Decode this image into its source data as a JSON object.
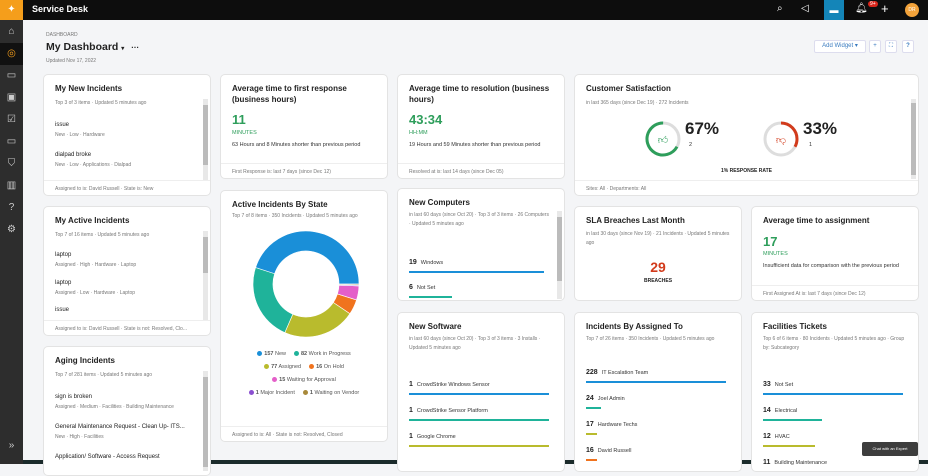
{
  "app": {
    "title": "Service Desk",
    "notif_badge": "9+",
    "avatar": "DR",
    "chat_expert": "Chat with an Expert"
  },
  "header": {
    "breadcrumb": "DASHBOARD",
    "title": "My Dashboard",
    "updated": "Updated Nov 17, 2022",
    "add_widget": "Add Widget"
  },
  "colors": {
    "blue": "#1a8fd8",
    "teal": "#1fb39a",
    "olive": "#b9bb2d",
    "orange": "#f0731e",
    "pink": "#e45fc9",
    "purple": "#8a4fd0",
    "brown": "#a8893a",
    "green": "#2e9e5b",
    "red": "#d23b1c"
  },
  "new_incidents": {
    "title": "My New Incidents",
    "sub": "Top 3 of 3 items · Updated 5 minutes ago",
    "items": [
      {
        "name": "issue",
        "meta": "New · Low · Hardware"
      },
      {
        "name": "dialpad broke",
        "meta": "New · Low · Applications · Dialpad"
      }
    ],
    "footer": "Assigned to is: David Russell · State is: New"
  },
  "first_response": {
    "title": "Average time to first response (business hours)",
    "value": "11",
    "unit": "MINUTES",
    "note": "63 Hours and 8 Minutes shorter than previous period",
    "footer": "First Response is: last 7 days (since Dec 12)"
  },
  "resolution": {
    "title": "Average time to resolution (business hours)",
    "value": "43:34",
    "unit": "HH:MM",
    "note": "19 Hours and 59 Minutes shorter than previous period",
    "footer": "Resolved at is: last 14 days (since Dec 05)"
  },
  "satisfaction": {
    "title": "Customer Satisfaction",
    "sub": "in last 365 days (since Dec 19) · 272 Incidents",
    "positive_pct": "67%",
    "positive_count": "2",
    "negative_pct": "33%",
    "negative_count": "1",
    "positive_fraction": 0.67,
    "negative_fraction": 0.33,
    "rate": "1% RESPONSE RATE",
    "footer": "Sites: All · Departments: All"
  },
  "active_incidents": {
    "title": "My Active Incidents",
    "sub": "Top 7 of 16 items · Updated 5 minutes ago",
    "items": [
      {
        "name": "laptop",
        "meta": "Assigned · High · Hardware · Laptop"
      },
      {
        "name": "laptop",
        "meta": "Assigned · Low · Hardware · Laptop"
      },
      {
        "name": "issue",
        "meta": ""
      }
    ],
    "footer": "Assigned to is: David Russell · State is not: Resolved, Clo..."
  },
  "by_state": {
    "title": "Active Incidents By State",
    "sub": "Top 7 of 8 items · 350 Incidents · Updated 5 minutes ago",
    "footer": "Assigned to is: All · State is not: Resolved, Closed"
  },
  "chart_data": {
    "type": "pie",
    "donut": true,
    "series": [
      {
        "name": "New",
        "value": 157,
        "color": "#1a8fd8"
      },
      {
        "name": "Work in Progress",
        "value": 82,
        "color": "#1fb39a"
      },
      {
        "name": "Assigned",
        "value": 77,
        "color": "#b9bb2d"
      },
      {
        "name": "On Hold",
        "value": 16,
        "color": "#f0731e"
      },
      {
        "name": "Waiting for Approval",
        "value": 15,
        "color": "#e45fc9"
      },
      {
        "name": "Major Incident",
        "value": 1,
        "color": "#8a4fd0"
      },
      {
        "name": "Waiting on Vendor",
        "value": 1,
        "color": "#a8893a"
      }
    ]
  },
  "computers": {
    "title": "New Computers",
    "sub": "in last 60 days (since Oct 20) · Top 3 of 3 items · 26 Computers · Updated 5 minutes ago",
    "items": [
      {
        "n": "19",
        "label": "Windows",
        "frac": 1.0,
        "color": "#1a8fd8"
      },
      {
        "n": "6",
        "label": "Not Set",
        "frac": 0.32,
        "color": "#1fb39a"
      }
    ]
  },
  "sla": {
    "title": "SLA Breaches Last Month",
    "sub": "in last 30 days (since Nov 19) · 21 Incidents · Updated 5 minutes ago",
    "value": "29",
    "unit": "BREACHES"
  },
  "assignment": {
    "title": "Average time to assignment",
    "value": "17",
    "unit": "MINUTES",
    "note": "Insufficient data for comparison with the previous period",
    "footer": "First Assigned At is: last 7 days (since Dec 12)"
  },
  "aging": {
    "title": "Aging Incidents",
    "sub": "Top 7 of 281 items · Updated 5 minutes ago",
    "items": [
      {
        "name": "sign is broken",
        "meta": "Assigned · Medium · Facilities · Building Maintenance"
      },
      {
        "name": "General Maintenance Request - Clean Up- ITS...",
        "meta": "New · High · Facilities"
      },
      {
        "name": "Application/ Software - Access Request",
        "meta": ""
      }
    ]
  },
  "software": {
    "title": "New Software",
    "sub": "in last 60 days (since Oct 20) · Top 3 of 3 items · 3 Installs · Updated 5 minutes ago",
    "items": [
      {
        "n": "1",
        "label": "CrowdStrike Windows Sensor",
        "frac": 1,
        "color": "#1a8fd8"
      },
      {
        "n": "1",
        "label": "CrowdStrike Sensor Platform",
        "frac": 1,
        "color": "#1fb39a"
      },
      {
        "n": "1",
        "label": "Google Chrome",
        "frac": 1,
        "color": "#b9bb2d"
      }
    ]
  },
  "assigned_to": {
    "title": "Incidents By Assigned To",
    "sub": "Top 7 of 26 items · 350 Incidents · Updated 5 minutes ago",
    "items": [
      {
        "n": "228",
        "label": "IT Escalation Team",
        "frac": 1,
        "color": "#1a8fd8"
      },
      {
        "n": "24",
        "label": "Joel Admin",
        "frac": 0.11,
        "color": "#1fb39a"
      },
      {
        "n": "17",
        "label": "Hardware Techs",
        "frac": 0.08,
        "color": "#b9bb2d"
      },
      {
        "n": "16",
        "label": "David Russell",
        "frac": 0.08,
        "color": "#f0731e"
      }
    ]
  },
  "facilities": {
    "title": "Facilities Tickets",
    "sub": "Top 6 of 6 items · 80 Incidents · Updated 5 minutes ago · Group by: Subcategory",
    "items": [
      {
        "n": "33",
        "label": "Not Set",
        "frac": 1,
        "color": "#1a8fd8"
      },
      {
        "n": "14",
        "label": "Electrical",
        "frac": 0.42,
        "color": "#1fb39a"
      },
      {
        "n": "12",
        "label": "HVAC",
        "frac": 0.37,
        "color": "#b9bb2d"
      },
      {
        "n": "11",
        "label": "Building Maintenance",
        "frac": 0.33,
        "color": "#f0731e"
      }
    ]
  }
}
